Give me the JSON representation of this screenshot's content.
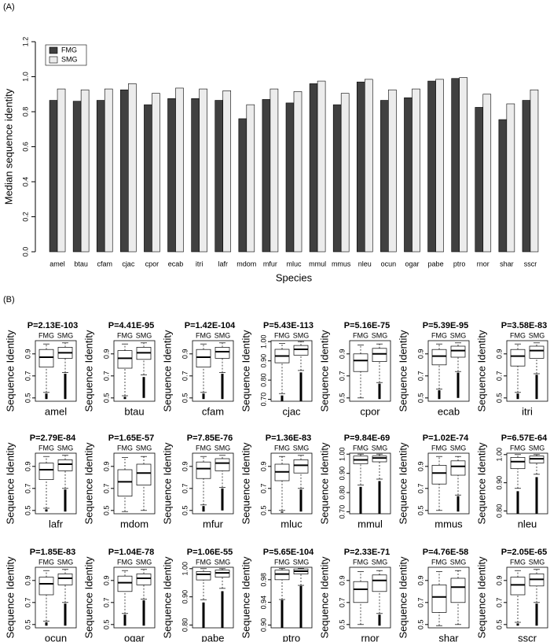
{
  "panel_labels": [
    "(A)",
    "(B)"
  ],
  "chart_data": [
    {
      "type": "bar",
      "y_label": "Median sequence identity",
      "x_label": "Species",
      "legend": "top-left",
      "categories": [
        "amel",
        "btau",
        "cfam",
        "cjac",
        "cpor",
        "ecab",
        "itri",
        "lafr",
        "mdom",
        "mfur",
        "mluc",
        "mmul",
        "mmus",
        "nleu",
        "ocun",
        "ogar",
        "pabe",
        "ptro",
        "rnor",
        "shar",
        "sscr"
      ],
      "series": [
        {
          "name": "FMG",
          "color": "#404040",
          "values": [
            0.865,
            0.86,
            0.865,
            0.925,
            0.84,
            0.875,
            0.875,
            0.865,
            0.76,
            0.87,
            0.85,
            0.96,
            0.84,
            0.97,
            0.865,
            0.88,
            0.975,
            0.99,
            0.825,
            0.755,
            0.865
          ]
        },
        {
          "name": "SMG",
          "color": "#ececec",
          "values": [
            0.93,
            0.925,
            0.93,
            0.96,
            0.905,
            0.935,
            0.93,
            0.92,
            0.84,
            0.93,
            0.915,
            0.975,
            0.905,
            0.985,
            0.925,
            0.93,
            0.985,
            0.995,
            0.9,
            0.845,
            0.925
          ]
        }
      ],
      "ylim": [
        0,
        1.2
      ],
      "yticks": [
        {
          "value": 0,
          "label": "0.0"
        },
        0.2,
        0.4,
        0.6,
        0.8,
        {
          "value": 1,
          "label": "1.0"
        },
        1.2
      ]
    },
    {
      "type": "boxplot",
      "y_label": "Sequence Identity",
      "groups": [
        "FMG",
        "SMG"
      ],
      "panels": [
        {
          "title": "P=2.13E-103",
          "x_label": "amel",
          "ylim": [
            0.47,
            1.02
          ],
          "yticks": [
            0.5,
            0.7,
            0.9
          ],
          "boxes": [
            {
              "whisker_low": 0.55,
              "q1": 0.78,
              "median": 0.87,
              "q3": 0.94,
              "whisker_high": 0.99,
              "outliers": [
                0.49,
                0.54
              ]
            },
            {
              "whisker_low": 0.73,
              "q1": 0.86,
              "median": 0.91,
              "q3": 0.96,
              "whisker_high": 1.0,
              "outliers": [
                0.49,
                0.72
              ]
            }
          ]
        },
        {
          "title": "P=4.41E-95",
          "x_label": "btau",
          "ylim": [
            0.47,
            1.02
          ],
          "yticks": [
            0.5,
            0.7,
            0.9
          ],
          "boxes": [
            {
              "whisker_low": 0.52,
              "q1": 0.77,
              "median": 0.86,
              "q3": 0.93,
              "whisker_high": 0.99,
              "outliers": [
                0.49,
                0.51
              ]
            },
            {
              "whisker_low": 0.71,
              "q1": 0.85,
              "median": 0.91,
              "q3": 0.96,
              "whisker_high": 1.0,
              "outliers": [
                0.5,
                0.69
              ]
            }
          ]
        },
        {
          "title": "P=1.42E-104",
          "x_label": "cfam",
          "ylim": [
            0.47,
            1.02
          ],
          "yticks": [
            0.5,
            0.7,
            0.9
          ],
          "boxes": [
            {
              "whisker_low": 0.55,
              "q1": 0.78,
              "median": 0.87,
              "q3": 0.94,
              "whisker_high": 0.99,
              "outliers": [
                0.49,
                0.54
              ]
            },
            {
              "whisker_low": 0.73,
              "q1": 0.86,
              "median": 0.92,
              "q3": 0.96,
              "whisker_high": 1.0,
              "outliers": [
                0.49,
                0.72
              ]
            }
          ]
        },
        {
          "title": "P=5.43E-113",
          "x_label": "cjac",
          "ylim": [
            0.69,
            1.005
          ],
          "yticks": [
            {
              "value": 0.7,
              "label": "0.70"
            },
            {
              "value": 0.8,
              "label": "0.80"
            },
            {
              "value": 0.9,
              "label": "0.90"
            },
            {
              "value": 1,
              "label": "1.00"
            }
          ],
          "boxes": [
            {
              "whisker_low": 0.73,
              "q1": 0.89,
              "median": 0.925,
              "q3": 0.96,
              "whisker_high": 0.99,
              "outliers": [
                0.69,
                0.72
              ]
            },
            {
              "whisker_low": 0.85,
              "q1": 0.93,
              "median": 0.96,
              "q3": 0.98,
              "whisker_high": 1.0,
              "outliers": [
                0.69,
                0.84
              ]
            }
          ]
        },
        {
          "title": "P=5.16E-75",
          "x_label": "cpor",
          "ylim": [
            0.47,
            1.02
          ],
          "yticks": [
            0.5,
            0.7,
            0.9
          ],
          "boxes": [
            {
              "whisker_low": 0.5,
              "q1": 0.74,
              "median": 0.84,
              "q3": 0.9,
              "whisker_high": 0.98,
              "outliers": null
            },
            {
              "whisker_low": 0.64,
              "q1": 0.83,
              "median": 0.9,
              "q3": 0.95,
              "whisker_high": 0.99,
              "outliers": [
                0.49,
                0.63
              ]
            }
          ]
        },
        {
          "title": "P=5.39E-95",
          "x_label": "ecab",
          "ylim": [
            0.47,
            1.02
          ],
          "yticks": [
            0.5,
            0.7,
            0.9
          ],
          "boxes": [
            {
              "whisker_low": 0.58,
              "q1": 0.8,
              "median": 0.88,
              "q3": 0.94,
              "whisker_high": 0.99,
              "outliers": [
                0.49,
                0.57
              ]
            },
            {
              "whisker_low": 0.74,
              "q1": 0.87,
              "median": 0.93,
              "q3": 0.97,
              "whisker_high": 1.0,
              "outliers": [
                0.5,
                0.73
              ]
            }
          ]
        },
        {
          "title": "P=3.58E-83",
          "x_label": "itri",
          "ylim": [
            0.47,
            1.02
          ],
          "yticks": [
            0.5,
            0.7,
            0.9
          ],
          "boxes": [
            {
              "whisker_low": 0.55,
              "q1": 0.79,
              "median": 0.88,
              "q3": 0.94,
              "whisker_high": 0.99,
              "outliers": [
                0.49,
                0.54
              ]
            },
            {
              "whisker_low": 0.72,
              "q1": 0.86,
              "median": 0.93,
              "q3": 0.97,
              "whisker_high": 1.0,
              "outliers": [
                0.49,
                0.71
              ]
            }
          ]
        },
        {
          "title": "P=2.79E-84",
          "x_label": "lafr",
          "ylim": [
            0.47,
            1.02
          ],
          "yticks": [
            0.5,
            0.7,
            0.9
          ],
          "boxes": [
            {
              "whisker_low": 0.52,
              "q1": 0.78,
              "median": 0.87,
              "q3": 0.93,
              "whisker_high": 0.99,
              "outliers": [
                0.49,
                0.51
              ]
            },
            {
              "whisker_low": 0.7,
              "q1": 0.86,
              "median": 0.92,
              "q3": 0.96,
              "whisker_high": 1.0,
              "outliers": [
                0.49,
                0.69
              ]
            }
          ]
        },
        {
          "title": "P=1.65E-57",
          "x_label": "mdom",
          "ylim": [
            0.47,
            1.02
          ],
          "yticks": [
            0.5,
            0.7,
            0.9
          ],
          "boxes": [
            {
              "whisker_low": 0.49,
              "q1": 0.63,
              "median": 0.76,
              "q3": 0.87,
              "whisker_high": 0.98,
              "outliers": null
            },
            {
              "whisker_low": 0.5,
              "q1": 0.73,
              "median": 0.84,
              "q3": 0.92,
              "whisker_high": 0.99,
              "outliers": null
            }
          ]
        },
        {
          "title": "P=7.85E-76",
          "x_label": "mfur",
          "ylim": [
            0.47,
            1.02
          ],
          "yticks": [
            0.5,
            0.7,
            0.9
          ],
          "boxes": [
            {
              "whisker_low": 0.55,
              "q1": 0.79,
              "median": 0.88,
              "q3": 0.94,
              "whisker_high": 0.99,
              "outliers": [
                0.49,
                0.54
              ]
            },
            {
              "whisker_low": 0.71,
              "q1": 0.86,
              "median": 0.93,
              "q3": 0.97,
              "whisker_high": 1.0,
              "outliers": [
                0.5,
                0.7
              ]
            }
          ]
        },
        {
          "title": "P=1.36E-83",
          "x_label": "mluc",
          "ylim": [
            0.47,
            1.02
          ],
          "yticks": [
            0.5,
            0.7,
            0.9
          ],
          "boxes": [
            {
              "whisker_low": 0.5,
              "q1": 0.77,
              "median": 0.85,
              "q3": 0.92,
              "whisker_high": 0.99,
              "outliers": [
                0.48,
                0.49
              ]
            },
            {
              "whisker_low": 0.7,
              "q1": 0.84,
              "median": 0.91,
              "q3": 0.96,
              "whisker_high": 1.0,
              "outliers": [
                0.49,
                0.69
              ]
            }
          ]
        },
        {
          "title": "P=9.84E-69",
          "x_label": "mmul",
          "ylim": [
            0.69,
            1.005
          ],
          "yticks": [
            {
              "value": 0.7,
              "label": "0.70"
            },
            {
              "value": 0.8,
              "label": "0.80"
            },
            {
              "value": 0.9,
              "label": "0.90"
            },
            {
              "value": 1,
              "label": "1.00"
            }
          ],
          "boxes": [
            {
              "whisker_low": 0.84,
              "q1": 0.95,
              "median": 0.97,
              "q3": 0.99,
              "whisker_high": 1.0,
              "outliers": [
                0.69,
                0.83
              ]
            },
            {
              "whisker_low": 0.87,
              "q1": 0.96,
              "median": 0.98,
              "q3": 0.99,
              "whisker_high": 1.0,
              "outliers": [
                0.69,
                0.86
              ]
            }
          ]
        },
        {
          "title": "P=1.02E-74",
          "x_label": "mmus",
          "ylim": [
            0.47,
            1.02
          ],
          "yticks": [
            0.5,
            0.7,
            0.9
          ],
          "boxes": [
            {
              "whisker_low": 0.5,
              "q1": 0.74,
              "median": 0.84,
              "q3": 0.91,
              "whisker_high": 0.99,
              "outliers": null
            },
            {
              "whisker_low": 0.64,
              "q1": 0.82,
              "median": 0.9,
              "q3": 0.95,
              "whisker_high": 0.99,
              "outliers": [
                0.49,
                0.63
              ]
            }
          ]
        },
        {
          "title": "P=6.57E-64",
          "x_label": "nleu",
          "ylim": [
            0.79,
            1.005
          ],
          "yticks": [
            {
              "value": 0.8,
              "label": "0.80"
            },
            {
              "value": 0.9,
              "label": "0.90"
            },
            {
              "value": 1,
              "label": "1.00"
            }
          ],
          "boxes": [
            {
              "whisker_low": 0.88,
              "q1": 0.95,
              "median": 0.975,
              "q3": 0.99,
              "whisker_high": 1.0,
              "outliers": [
                0.79,
                0.87
              ]
            },
            {
              "whisker_low": 0.93,
              "q1": 0.97,
              "median": 0.985,
              "q3": 0.995,
              "whisker_high": 1.0,
              "outliers": [
                0.79,
                0.92
              ]
            }
          ]
        },
        {
          "title": "P=1.85E-83",
          "x_label": "ocun",
          "ylim": [
            0.47,
            1.02
          ],
          "yticks": [
            0.5,
            0.7,
            0.9
          ],
          "boxes": [
            {
              "whisker_low": 0.53,
              "q1": 0.77,
              "median": 0.87,
              "q3": 0.93,
              "whisker_high": 0.99,
              "outliers": [
                0.49,
                0.52
              ]
            },
            {
              "whisker_low": 0.7,
              "q1": 0.86,
              "median": 0.92,
              "q3": 0.96,
              "whisker_high": 1.0,
              "outliers": [
                0.49,
                0.69
              ]
            }
          ]
        },
        {
          "title": "P=1.04E-78",
          "x_label": "ogar",
          "ylim": [
            0.47,
            1.02
          ],
          "yticks": [
            0.5,
            0.7,
            0.9
          ],
          "boxes": [
            {
              "whisker_low": 0.6,
              "q1": 0.8,
              "median": 0.88,
              "q3": 0.94,
              "whisker_high": 0.99,
              "outliers": [
                0.49,
                0.59
              ]
            },
            {
              "whisker_low": 0.73,
              "q1": 0.86,
              "median": 0.92,
              "q3": 0.96,
              "whisker_high": 1.0,
              "outliers": [
                0.49,
                0.72
              ]
            }
          ]
        },
        {
          "title": "P=1.06E-55",
          "x_label": "pabe",
          "ylim": [
            0.79,
            1.005
          ],
          "yticks": [
            {
              "value": 0.8,
              "label": "0.80"
            },
            {
              "value": 0.9,
              "label": "0.90"
            },
            {
              "value": 1,
              "label": "1.00"
            }
          ],
          "boxes": [
            {
              "whisker_low": 0.89,
              "q1": 0.96,
              "median": 0.98,
              "q3": 0.99,
              "whisker_high": 1.0,
              "outliers": [
                0.79,
                0.88
              ]
            },
            {
              "whisker_low": 0.93,
              "q1": 0.97,
              "median": 0.985,
              "q3": 0.995,
              "whisker_high": 1.0,
              "outliers": [
                0.79,
                0.92
              ]
            }
          ]
        },
        {
          "title": "P=5.65E-104",
          "x_label": "ptro",
          "ylim": [
            0.895,
            1.002
          ],
          "yticks": [
            {
              "value": 0.9,
              "label": "0.90"
            },
            0.94,
            0.98
          ],
          "boxes": [
            {
              "whisker_low": 0.945,
              "q1": 0.98,
              "median": 0.99,
              "q3": 0.997,
              "whisker_high": 1.0,
              "outliers": [
                0.895,
                0.944
              ]
            },
            {
              "whisker_low": 0.97,
              "q1": 0.99,
              "median": 0.995,
              "q3": 0.999,
              "whisker_high": 1.0,
              "outliers": [
                0.895,
                0.969
              ]
            }
          ]
        },
        {
          "title": "P=2.33E-71",
          "x_label": "rnor",
          "ylim": [
            0.47,
            1.02
          ],
          "yticks": [
            0.5,
            0.7,
            0.9
          ],
          "boxes": [
            {
              "whisker_low": 0.5,
              "q1": 0.7,
              "median": 0.82,
              "q3": 0.89,
              "whisker_high": 0.98,
              "outliers": null
            },
            {
              "whisker_low": 0.6,
              "q1": 0.8,
              "median": 0.9,
              "q3": 0.95,
              "whisker_high": 0.99,
              "outliers": [
                0.49,
                0.59
              ]
            }
          ]
        },
        {
          "title": "P=4.76E-58",
          "x_label": "shar",
          "ylim": [
            0.47,
            1.02
          ],
          "yticks": [
            0.5,
            0.7,
            0.9
          ],
          "boxes": [
            {
              "whisker_low": 0.49,
              "q1": 0.61,
              "median": 0.75,
              "q3": 0.86,
              "whisker_high": 0.98,
              "outliers": null
            },
            {
              "whisker_low": 0.5,
              "q1": 0.7,
              "median": 0.84,
              "q3": 0.92,
              "whisker_high": 0.99,
              "outliers": null
            }
          ]
        },
        {
          "title": "P=2.05E-65",
          "x_label": "sscr",
          "ylim": [
            0.47,
            1.02
          ],
          "yticks": [
            0.5,
            0.7,
            0.9
          ],
          "boxes": [
            {
              "whisker_low": 0.52,
              "q1": 0.77,
              "median": 0.86,
              "q3": 0.93,
              "whisker_high": 0.99,
              "outliers": [
                0.49,
                0.51
              ]
            },
            {
              "whisker_low": 0.7,
              "q1": 0.85,
              "median": 0.91,
              "q3": 0.96,
              "whisker_high": 1.0,
              "outliers": [
                0.49,
                0.69
              ]
            }
          ]
        }
      ]
    }
  ]
}
